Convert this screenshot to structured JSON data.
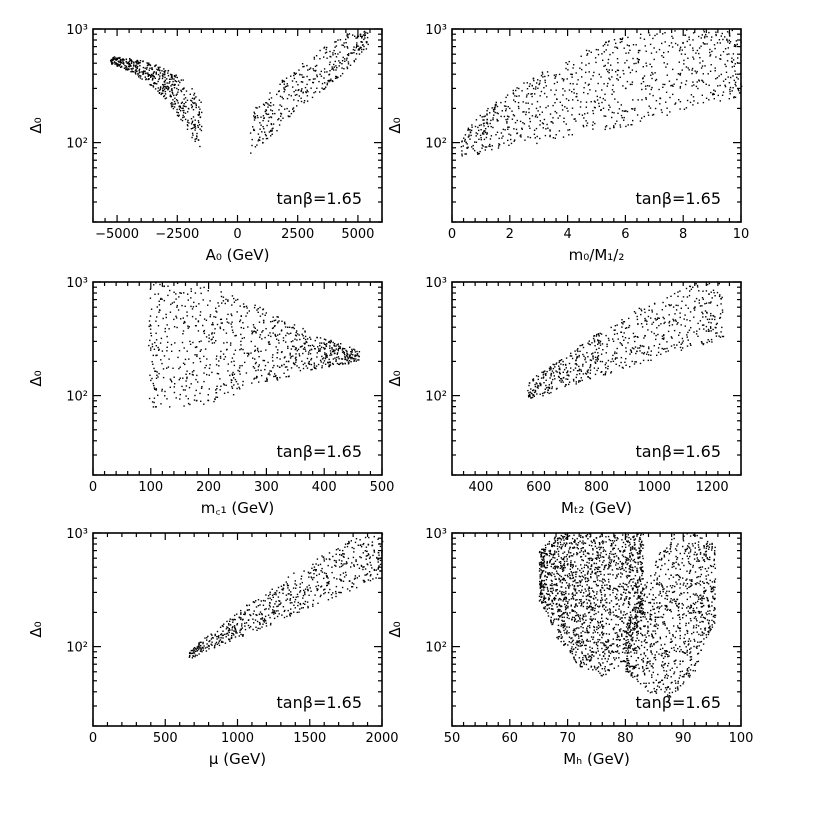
{
  "chart_data": [
    {
      "type": "scatter",
      "panel": "A0",
      "xlabel": "A₀ (GeV)",
      "ylabel": "Δ₀",
      "annotation": "tanβ=1.65",
      "ylog": true,
      "xlim": [
        -6000,
        6000
      ],
      "ylim": [
        20,
        1000
      ],
      "xticks": [
        -5000,
        -2500,
        0,
        2500,
        5000
      ],
      "xtick_labels": [
        "−5000",
        "−2500",
        "0",
        "2500",
        "5000"
      ],
      "yticks": [
        100,
        1000
      ],
      "ytick_labels": [
        "10²",
        "10³"
      ],
      "clusters": [
        {
          "x": [
            -5300,
            -4500,
            -3700,
            -3000,
            -2400,
            -1900,
            -1500
          ],
          "y_min": [
            500,
            430,
            330,
            240,
            160,
            110,
            85
          ],
          "y_max": [
            580,
            560,
            520,
            450,
            380,
            300,
            230
          ],
          "n": 500
        },
        {
          "x": [
            500,
            1500,
            2500,
            3500,
            4500,
            5400
          ],
          "y_min": [
            80,
            120,
            200,
            290,
            420,
            700
          ],
          "y_max": [
            180,
            300,
            480,
            700,
            920,
            1000
          ],
          "n": 380
        }
      ],
      "color": "#000000"
    },
    {
      "type": "scatter",
      "panel": "m0/M1/2",
      "xlabel": "m₀/M₁/₂",
      "ylabel": "Δ₀",
      "annotation": "tanβ=1.65",
      "ylog": true,
      "xlim": [
        0,
        10
      ],
      "ylim": [
        20,
        1000
      ],
      "xticks": [
        0,
        2,
        4,
        6,
        8,
        10
      ],
      "xtick_labels": [
        "0",
        "2",
        "4",
        "6",
        "8",
        "10"
      ],
      "yticks": [
        100,
        1000
      ],
      "ytick_labels": [
        "10²",
        "10³"
      ],
      "clusters": [
        {
          "x": [
            0.3,
            2,
            4,
            6,
            8,
            10
          ],
          "y_min": [
            75,
            90,
            110,
            140,
            190,
            260
          ],
          "y_max": [
            120,
            280,
            550,
            900,
            1000,
            1000
          ],
          "n": 900
        }
      ],
      "color": "#000000"
    },
    {
      "type": "scatter",
      "panel": "mc1",
      "xlabel": "m꜀₁ (GeV)",
      "ylabel": "Δ₀",
      "annotation": "tanβ=1.65",
      "ylog": true,
      "xlim": [
        0,
        500
      ],
      "ylim": [
        20,
        1000
      ],
      "xticks": [
        0,
        100,
        200,
        300,
        400,
        500
      ],
      "xtick_labels": [
        "0",
        "100",
        "200",
        "300",
        "400",
        "500"
      ],
      "yticks": [
        100,
        1000
      ],
      "ytick_labels": [
        "10²",
        "10³"
      ],
      "clusters": [
        {
          "x": [
            95,
            150,
            200,
            260,
            320,
            380,
            460
          ],
          "y_min": [
            80,
            80,
            85,
            110,
            140,
            170,
            200
          ],
          "y_max": [
            1000,
            1000,
            900,
            700,
            500,
            350,
            250
          ],
          "n": 900
        }
      ],
      "color": "#000000"
    },
    {
      "type": "scatter",
      "panel": "Mt2",
      "xlabel": "Mₜ₂ (GeV)",
      "ylabel": "Δ₀",
      "annotation": "tanβ=1.65",
      "ylog": true,
      "xlim": [
        300,
        1300
      ],
      "ylim": [
        20,
        1000
      ],
      "xticks": [
        400,
        600,
        800,
        1000,
        1200
      ],
      "xtick_labels": [
        "400",
        "600",
        "800",
        "1000",
        "1200"
      ],
      "yticks": [
        100,
        1000
      ],
      "ytick_labels": [
        "10²",
        "10³"
      ],
      "clusters": [
        {
          "x": [
            560,
            700,
            850,
            1000,
            1150,
            1240
          ],
          "y_min": [
            90,
            120,
            160,
            210,
            270,
            320
          ],
          "y_max": [
            130,
            230,
            420,
            700,
            1000,
            1000
          ],
          "n": 650
        }
      ],
      "color": "#000000"
    },
    {
      "type": "scatter",
      "panel": "mu",
      "xlabel": "μ (GeV)",
      "ylabel": "Δ₀",
      "annotation": "tanβ=1.65",
      "ylog": true,
      "xlim": [
        0,
        2000
      ],
      "ylim": [
        20,
        1000
      ],
      "xticks": [
        0,
        500,
        1000,
        1500,
        2000
      ],
      "xtick_labels": [
        "0",
        "500",
        "1000",
        "1500",
        "2000"
      ],
      "yticks": [
        100,
        1000
      ],
      "ytick_labels": [
        "10²",
        "10³"
      ],
      "clusters": [
        {
          "x": [
            660,
            900,
            1200,
            1500,
            1800,
            2000
          ],
          "y_min": [
            78,
            105,
            150,
            220,
            320,
            420
          ],
          "y_max": [
            90,
            160,
            300,
            550,
            900,
            1000
          ],
          "n": 650
        }
      ],
      "color": "#000000"
    },
    {
      "type": "scatter",
      "panel": "Mh",
      "xlabel": "Mₕ (GeV)",
      "ylabel": "Δ₀",
      "annotation": "tanβ=1.65",
      "ylog": true,
      "xlim": [
        50,
        100
      ],
      "ylim": [
        20,
        1000
      ],
      "xticks": [
        50,
        60,
        70,
        80,
        90,
        100
      ],
      "xtick_labels": [
        "50",
        "60",
        "70",
        "80",
        "90",
        "100"
      ],
      "yticks": [
        100,
        1000
      ],
      "ytick_labels": [
        "10²",
        "10³"
      ],
      "clusters": [
        {
          "x": [
            65,
            68,
            72,
            76,
            80,
            83
          ],
          "y_min": [
            250,
            120,
            65,
            55,
            75,
            200
          ],
          "y_max": [
            700,
            1000,
            1000,
            1000,
            1000,
            1000
          ],
          "n": 1700
        },
        {
          "x": [
            80,
            84,
            88,
            92,
            95.5
          ],
          "y_min": [
            60,
            40,
            35,
            60,
            160
          ],
          "y_max": [
            150,
            400,
            1000,
            1000,
            800
          ],
          "n": 1000
        }
      ],
      "color": "#000000"
    }
  ]
}
